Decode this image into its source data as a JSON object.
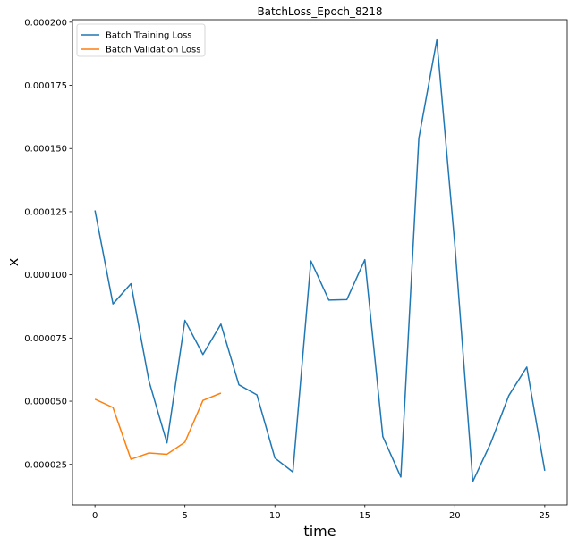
{
  "chart_data": {
    "type": "line",
    "title": "BatchLoss_Epoch_8218",
    "xlabel": "time",
    "ylabel": "x",
    "xlim": [
      -1.25,
      26.25
    ],
    "ylim": [
      9e-06,
      0.000201
    ],
    "x_ticks": [
      0,
      5,
      10,
      15,
      20,
      25
    ],
    "x_tick_labels": [
      "0",
      "5",
      "10",
      "15",
      "20",
      "25"
    ],
    "y_ticks": [
      2.5e-05,
      5e-05,
      7.5e-05,
      0.0001,
      0.000125,
      0.00015,
      0.000175,
      0.0002
    ],
    "y_tick_labels": [
      "0.000025",
      "0.000050",
      "0.000075",
      "0.000100",
      "0.000125",
      "0.000150",
      "0.000175",
      "0.000200"
    ],
    "grid": false,
    "legend_position": "top-left",
    "series": [
      {
        "name": "Batch Training Loss",
        "color": "#1f77b4",
        "x": [
          0,
          1,
          2,
          3,
          4,
          5,
          6,
          7,
          8,
          9,
          10,
          11,
          12,
          13,
          14,
          15,
          16,
          17,
          18,
          19,
          20,
          21,
          22,
          23,
          24,
          25
        ],
        "y": [
          0.0001255,
          8.85e-05,
          9.65e-05,
          5.8e-05,
          3.35e-05,
          8.2e-05,
          6.85e-05,
          8.05e-05,
          5.65e-05,
          5.25e-05,
          2.75e-05,
          2.2e-05,
          0.0001055,
          9e-05,
          9.02e-05,
          0.000106,
          3.6e-05,
          2e-05,
          0.000154,
          0.000193,
          0.000112,
          1.82e-05,
          3.35e-05,
          5.22e-05,
          6.35e-05,
          2.25e-05
        ]
      },
      {
        "name": "Batch Validation Loss",
        "color": "#ff7f0e",
        "x": [
          0,
          1,
          2,
          3,
          4,
          5,
          6,
          7
        ],
        "y": [
          5.08e-05,
          4.75e-05,
          2.7e-05,
          2.95e-05,
          2.9e-05,
          3.38e-05,
          5.03e-05,
          5.32e-05
        ]
      }
    ]
  }
}
